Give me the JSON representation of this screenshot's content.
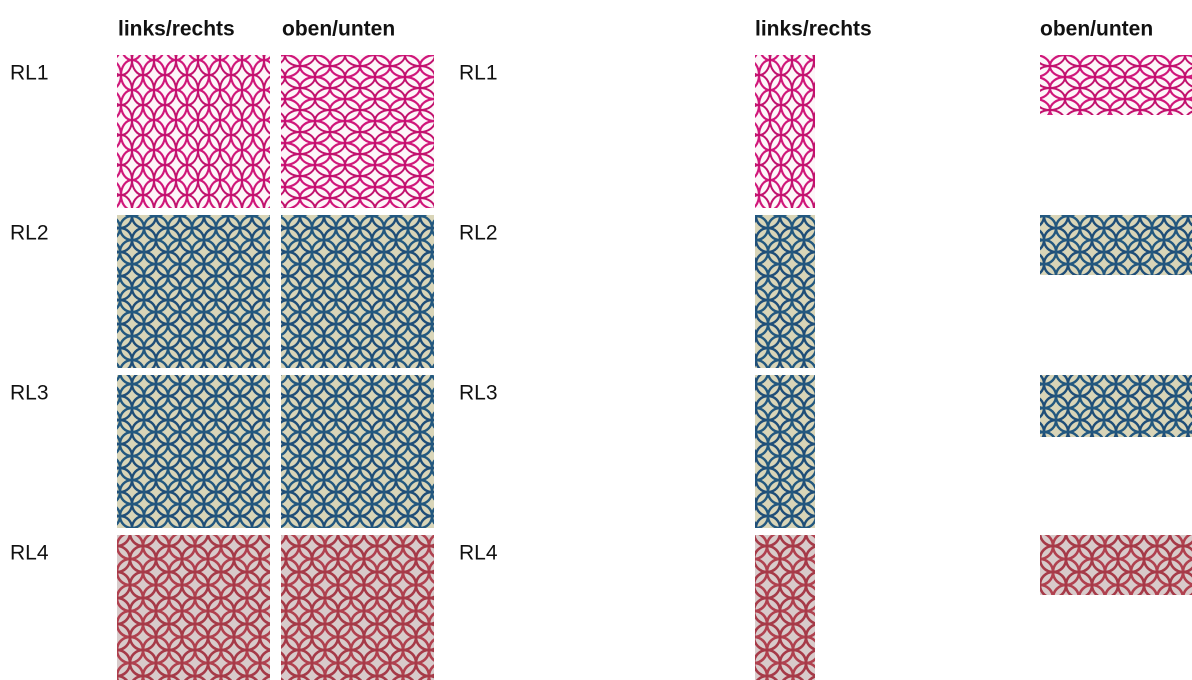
{
  "left": {
    "headers": [
      "links/rechts",
      "oben/unten"
    ],
    "rows": [
      "RL1",
      "RL2",
      "RL3",
      "RL4"
    ]
  },
  "right": {
    "headers": [
      "links/rechts",
      "oben/unten"
    ],
    "rows": [
      "RL1",
      "RL2",
      "RL3",
      "RL4"
    ]
  }
}
